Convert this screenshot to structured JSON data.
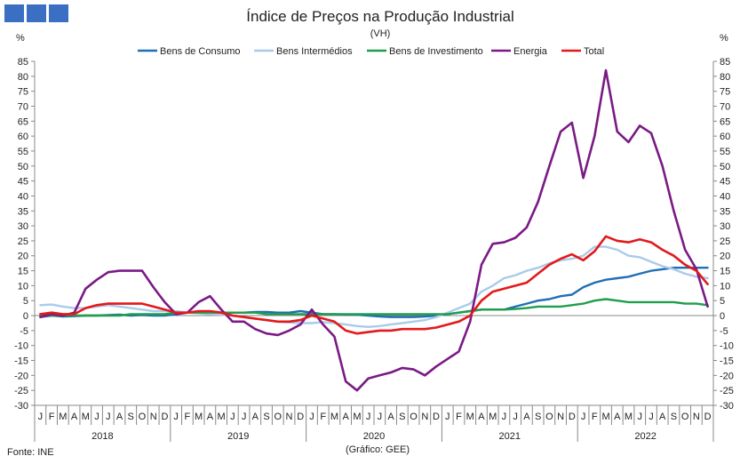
{
  "chart_data": {
    "type": "line",
    "title": "Índice de Preços na Produção Industrial",
    "subtitle": "(VH)",
    "ylabel_left": "%",
    "ylabel_right": "%",
    "ylim": [
      -30,
      85
    ],
    "yticks": [
      -30,
      -25,
      -20,
      -15,
      -10,
      -5,
      0,
      5,
      10,
      15,
      20,
      25,
      30,
      35,
      40,
      45,
      50,
      55,
      60,
      65,
      70,
      75,
      80,
      85
    ],
    "month_labels": [
      "J",
      "F",
      "M",
      "A",
      "M",
      "J",
      "J",
      "A",
      "S",
      "O",
      "N",
      "D"
    ],
    "years": [
      "2018",
      "2019",
      "2020",
      "2021",
      "2022"
    ],
    "legend_position": "top",
    "series": [
      {
        "name": "Bens de Consumo",
        "color": "#1f6fb5",
        "values": [
          -0.5,
          0,
          -0.3,
          -0.2,
          0,
          0,
          0.2,
          0.3,
          0,
          0.2,
          0,
          0,
          0.5,
          1,
          1,
          0.8,
          0.8,
          1,
          1,
          1.2,
          1.2,
          1,
          1,
          1.5,
          1,
          0.5,
          0.5,
          0.3,
          0.3,
          0,
          -0.3,
          -0.5,
          -0.5,
          -0.5,
          -0.3,
          0,
          0.5,
          1,
          1.5,
          2,
          2,
          2,
          3,
          4,
          5,
          5.5,
          6.5,
          7,
          9.5,
          11,
          12,
          12.5,
          13,
          14,
          15,
          15.5,
          16,
          16,
          16,
          16
        ]
      },
      {
        "name": "Bens Intermédios",
        "color": "#a9cbea",
        "values": [
          3.5,
          3.7,
          3,
          2.5,
          2.5,
          3,
          3.5,
          3,
          2.5,
          2,
          1.5,
          1.5,
          1.5,
          1,
          0.8,
          0.5,
          0.3,
          0,
          -0.5,
          -1,
          -1.5,
          -2,
          -2.3,
          -2.5,
          -2.5,
          -2.2,
          -2.5,
          -3,
          -3.5,
          -3.8,
          -3.5,
          -3,
          -2.5,
          -2,
          -1.5,
          -0.5,
          1,
          2.5,
          4,
          8,
          10,
          12.5,
          13.5,
          15,
          16,
          17.5,
          18.5,
          19,
          20,
          23,
          23,
          22,
          20,
          19.5,
          18,
          16.5,
          15.5,
          14,
          13,
          12.5
        ]
      },
      {
        "name": "Bens de Investimento",
        "color": "#1f9e4b",
        "values": [
          0,
          0,
          0,
          0,
          0,
          0,
          0,
          0,
          0.5,
          0.5,
          0.5,
          0.5,
          1,
          1,
          1,
          1,
          1,
          1,
          1,
          1,
          0.5,
          0.5,
          0.5,
          0.5,
          0.5,
          0.5,
          0.5,
          0.5,
          0.5,
          0.5,
          0.5,
          0.5,
          0.5,
          0.5,
          0.5,
          0.5,
          0.5,
          1,
          1.5,
          2,
          2,
          2,
          2.2,
          2.5,
          3,
          3,
          3,
          3.5,
          4,
          5,
          5.5,
          5,
          4.5,
          4.5,
          4.5,
          4.5,
          4.5,
          4,
          4,
          3.5
        ]
      },
      {
        "name": "Energia",
        "color": "#7a1a85",
        "values": [
          -0.5,
          0.5,
          0,
          1,
          9,
          12,
          14.5,
          15,
          15,
          15,
          9.5,
          4.5,
          0.5,
          1,
          4.5,
          6.5,
          2,
          -2,
          -2,
          -4.5,
          -6,
          -6.5,
          -5,
          -3,
          2,
          -3,
          -7,
          -22,
          -25,
          -21,
          -20,
          -19,
          -17.5,
          -18,
          -20,
          -17,
          -14.5,
          -12,
          -2,
          17,
          24,
          24.5,
          26,
          29.5,
          38,
          50,
          61.5,
          64.5,
          46,
          60,
          82,
          61.5,
          58,
          63.5,
          61,
          50,
          35,
          22,
          15.5,
          3
        ]
      },
      {
        "name": "Total",
        "color": "#e3191b",
        "values": [
          0.5,
          1,
          0.5,
          0.5,
          2.5,
          3.5,
          4,
          4,
          4,
          4,
          3,
          2,
          1,
          1,
          1.5,
          1.5,
          1,
          0,
          -0.5,
          -1,
          -1.5,
          -2,
          -2,
          -1.5,
          0,
          -1,
          -2,
          -5,
          -6,
          -5.5,
          -5,
          -5,
          -4.5,
          -4.5,
          -4.5,
          -4,
          -3,
          -2,
          0,
          5,
          8,
          9,
          10,
          11,
          14,
          17,
          19,
          20.5,
          18.5,
          21.5,
          26.5,
          25,
          24.5,
          25.5,
          24.5,
          22,
          20,
          17,
          15,
          10.5
        ]
      }
    ]
  },
  "footer": {
    "source": "Fonte: INE",
    "credit": "(Gráfico: GEE)"
  },
  "logo": {
    "color": "#3a6fc4"
  }
}
